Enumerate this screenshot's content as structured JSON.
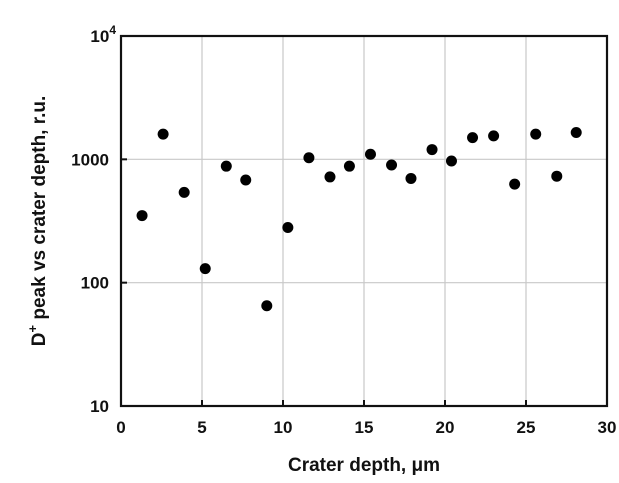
{
  "chart_data": {
    "type": "scatter",
    "title": "",
    "xlabel": "Crater depth, μm",
    "ylabel_main": "D",
    "ylabel_sup": "+",
    "ylabel_rest": " peak vs crater depth, r.u.",
    "xlim": [
      0,
      30
    ],
    "ylim": [
      10,
      10000
    ],
    "yscale": "log",
    "grid": true,
    "x_ticks": [
      {
        "value": 0,
        "label": "0"
      },
      {
        "value": 5,
        "label": "5"
      },
      {
        "value": 10,
        "label": "10"
      },
      {
        "value": 15,
        "label": "15"
      },
      {
        "value": 20,
        "label": "20"
      },
      {
        "value": 25,
        "label": "25"
      },
      {
        "value": 30,
        "label": "30"
      }
    ],
    "y_ticks": [
      {
        "value": 10,
        "label": "10",
        "sup": ""
      },
      {
        "value": 100,
        "label": "100",
        "sup": ""
      },
      {
        "value": 1000,
        "label": "1000",
        "sup": ""
      },
      {
        "value": 10000,
        "label": "10",
        "sup": "4"
      }
    ],
    "points": [
      {
        "x": 1.3,
        "y": 350
      },
      {
        "x": 2.6,
        "y": 1600
      },
      {
        "x": 3.9,
        "y": 540
      },
      {
        "x": 5.2,
        "y": 130
      },
      {
        "x": 6.5,
        "y": 880
      },
      {
        "x": 7.7,
        "y": 680
      },
      {
        "x": 9.0,
        "y": 65
      },
      {
        "x": 10.3,
        "y": 280
      },
      {
        "x": 11.6,
        "y": 1030
      },
      {
        "x": 12.9,
        "y": 720
      },
      {
        "x": 14.1,
        "y": 880
      },
      {
        "x": 15.4,
        "y": 1100
      },
      {
        "x": 16.7,
        "y": 900
      },
      {
        "x": 17.9,
        "y": 700
      },
      {
        "x": 19.2,
        "y": 1200
      },
      {
        "x": 20.4,
        "y": 970
      },
      {
        "x": 21.7,
        "y": 1500
      },
      {
        "x": 23.0,
        "y": 1550
      },
      {
        "x": 24.3,
        "y": 630
      },
      {
        "x": 25.6,
        "y": 1600
      },
      {
        "x": 26.9,
        "y": 730
      },
      {
        "x": 28.1,
        "y": 1650
      }
    ]
  }
}
